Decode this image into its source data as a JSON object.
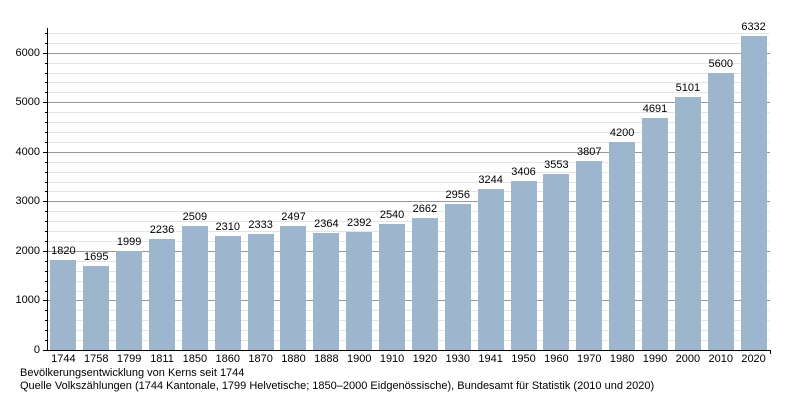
{
  "caption": {
    "line1": "Bevölkerungsentwicklung von Kerns seit 1744",
    "line2": "Quelle Volkszählungen (1744 Kantonale, 1799 Helvetische; 1850–2000 Eidgenössische), Bundesamt für Statistik (2010 und 2020)"
  },
  "chart_data": {
    "type": "bar",
    "title": "Bevölkerungsentwicklung von Kerns seit 1744",
    "source": "Quelle Volkszählungen (1744 Kantonale, 1799 Helvetische; 1850–2000 Eidgenössische), Bundesamt für Statistik (2010 und 2020)",
    "categories": [
      "1744",
      "1758",
      "1799",
      "1811",
      "1850",
      "1860",
      "1870",
      "1880",
      "1888",
      "1900",
      "1910",
      "1920",
      "1930",
      "1941",
      "1950",
      "1960",
      "1970",
      "1980",
      "1990",
      "2000",
      "2010",
      "2020"
    ],
    "values": [
      1820,
      1695,
      1999,
      2236,
      2509,
      2310,
      2333,
      2497,
      2364,
      2392,
      2540,
      2662,
      2956,
      3244,
      3406,
      3553,
      3807,
      4200,
      4691,
      5101,
      5600,
      6332
    ],
    "xlabel": "",
    "ylabel": "",
    "ylim": [
      0,
      6500
    ],
    "y_major_step": 1000,
    "y_minor_step": 200,
    "y_tick_labels": [
      "0",
      "1000",
      "2000",
      "3000",
      "4000",
      "5000",
      "6000"
    ],
    "grid": true,
    "legend": "none",
    "data_labels": true
  },
  "colors": {
    "bar_fill": "#9DB5CD",
    "major_grid": "#999999",
    "minor_grid": "#E4E4E4",
    "axis": "#000000",
    "text": "#000000",
    "background": "#FFFFFF"
  }
}
